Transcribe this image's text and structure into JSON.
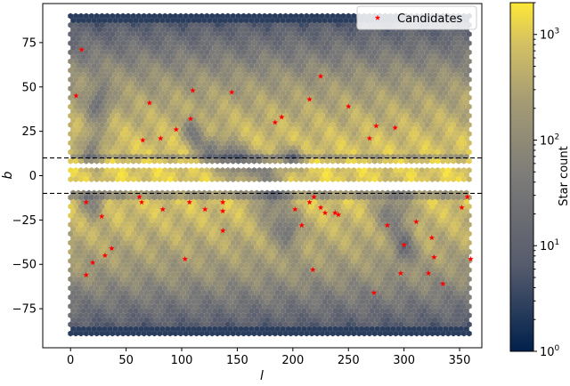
{
  "chart_data": {
    "type": "scatter",
    "title": "",
    "xlabel": "l",
    "ylabel": "b",
    "xlim": [
      -25,
      370
    ],
    "ylim": [
      -97,
      97
    ],
    "xticks": [
      0,
      50,
      100,
      150,
      200,
      250,
      300,
      350
    ],
    "yticks": [
      -75,
      -50,
      -25,
      0,
      25,
      50,
      75
    ],
    "grid": false,
    "legend": {
      "position": "top-right",
      "entries": [
        "Candidates"
      ]
    },
    "background": {
      "type": "hexbin",
      "label": "Star count",
      "scale": "log",
      "range": [
        1,
        2000
      ],
      "cmap": [
        "#00204c",
        "#575c6d",
        "#7c7b78",
        "#a59c74",
        "#d3c064",
        "#fde737"
      ],
      "masked_band_b": [
        -10,
        10
      ]
    },
    "reference_lines": [
      {
        "b": 10,
        "style": "dashed"
      },
      {
        "b": -10,
        "style": "dashed"
      }
    ],
    "colorbar": {
      "label": "Star count",
      "ticks": [
        {
          "value": 1,
          "label": "10",
          "exp": "0"
        },
        {
          "value": 10,
          "label": "10",
          "exp": "1"
        },
        {
          "value": 100,
          "label": "10",
          "exp": "2"
        },
        {
          "value": 1000,
          "label": "10",
          "exp": "3"
        }
      ]
    },
    "series": [
      {
        "name": "Candidates",
        "marker": "star",
        "color": "#ff0000",
        "points": [
          [
            10,
            71
          ],
          [
            5,
            45
          ],
          [
            71,
            41
          ],
          [
            110,
            48
          ],
          [
            145,
            47
          ],
          [
            225,
            56
          ],
          [
            215,
            43
          ],
          [
            250,
            39
          ],
          [
            190,
            33
          ],
          [
            184,
            30
          ],
          [
            108,
            32
          ],
          [
            95,
            26
          ],
          [
            81,
            21
          ],
          [
            65,
            20
          ],
          [
            269,
            21
          ],
          [
            275,
            28
          ],
          [
            292,
            27
          ],
          [
            14,
            -15
          ],
          [
            28,
            -23
          ],
          [
            62,
            -12
          ],
          [
            64,
            -15
          ],
          [
            83,
            -19
          ],
          [
            107,
            -15
          ],
          [
            121,
            -19
          ],
          [
            137,
            -15
          ],
          [
            137,
            -20
          ],
          [
            137,
            -31
          ],
          [
            202,
            -19
          ],
          [
            208,
            -28
          ],
          [
            215,
            -15
          ],
          [
            219,
            -12
          ],
          [
            225,
            -18
          ],
          [
            229,
            -21
          ],
          [
            238,
            -21
          ],
          [
            241,
            -22
          ],
          [
            285,
            -28
          ],
          [
            300,
            -39
          ],
          [
            311,
            -26
          ],
          [
            325,
            -35
          ],
          [
            327,
            -46
          ],
          [
            352,
            -18
          ],
          [
            357,
            -12
          ],
          [
            360,
            -47
          ],
          [
            335,
            -61
          ],
          [
            322,
            -55
          ],
          [
            297,
            -55
          ],
          [
            273,
            -66
          ],
          [
            218,
            -53
          ],
          [
            103,
            -47
          ],
          [
            37,
            -41
          ],
          [
            31,
            -45
          ],
          [
            20,
            -49
          ],
          [
            14,
            -56
          ]
        ]
      }
    ]
  }
}
